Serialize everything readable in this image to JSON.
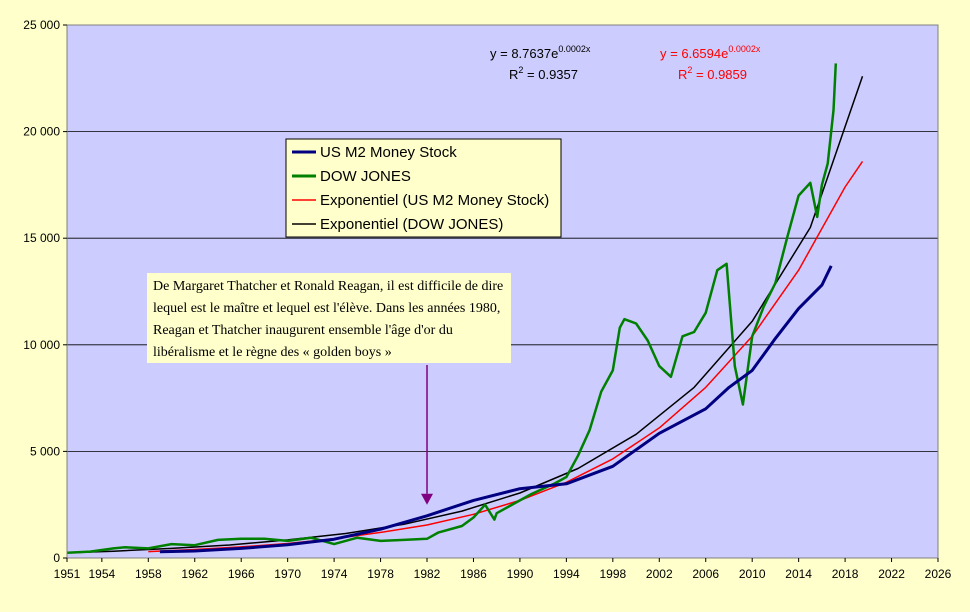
{
  "chart_data": {
    "type": "line",
    "title": "",
    "xlabel": "",
    "ylabel": "",
    "xlim": [
      1951,
      2026
    ],
    "ylim": [
      0,
      25000
    ],
    "x_ticks": [
      "1951",
      "1954",
      "1958",
      "1962",
      "1966",
      "1970",
      "1974",
      "1978",
      "1982",
      "1986",
      "1990",
      "1994",
      "1998",
      "2002",
      "2006",
      "2010",
      "2014",
      "2018",
      "2022",
      "2026"
    ],
    "y_ticks": [
      "0",
      "5 000",
      "10 000",
      "15 000",
      "20 000",
      "25 000"
    ],
    "grid": "horizontal",
    "plot_background": "#ccccff",
    "page_background": "#ffffcc",
    "legend": {
      "placement": "upper-center",
      "entries": [
        {
          "label": "US M2 Money Stock",
          "color": "#000080"
        },
        {
          "label": "DOW JONES",
          "color": "#008000"
        },
        {
          "label": "Exponentiel (US M2 Money Stock)",
          "color": "#ff0000"
        },
        {
          "label": "Exponentiel (DOW JONES)",
          "color": "#000000"
        }
      ]
    },
    "series": [
      {
        "name": "US M2 Money Stock",
        "color": "#000080",
        "x": [
          1959,
          1962,
          1966,
          1970,
          1974,
          1978,
          1982,
          1986,
          1990,
          1994,
          1998,
          2002,
          2006,
          2008,
          2010,
          2012,
          2014,
          2016,
          2016.8
        ],
        "y": [
          290,
          330,
          450,
          620,
          880,
          1350,
          1980,
          2700,
          3250,
          3480,
          4300,
          5850,
          7000,
          8000,
          8800,
          10300,
          11700,
          12800,
          13700
        ]
      },
      {
        "name": "DOW JONES",
        "color": "#008000",
        "x": [
          1951,
          1953,
          1955,
          1956,
          1958,
          1960,
          1962,
          1964,
          1966,
          1968,
          1970,
          1972,
          1974,
          1976,
          1978,
          1980,
          1982,
          1983,
          1985,
          1986,
          1987,
          1987.8,
          1988,
          1990,
          1991,
          1993,
          1994,
          1995,
          1996,
          1997,
          1998,
          1998.6,
          1999,
          2000,
          2001,
          2002,
          2003,
          2004,
          2005,
          2006,
          2007,
          2007.8,
          2008.5,
          2009.2,
          2010,
          2011,
          2012,
          2013,
          2014,
          2015,
          2015.6,
          2016,
          2016.5,
          2017,
          2017.2
        ],
        "y": [
          250,
          300,
          450,
          500,
          450,
          650,
          600,
          850,
          900,
          900,
          800,
          950,
          650,
          950,
          800,
          850,
          900,
          1200,
          1500,
          1900,
          2500,
          1800,
          2100,
          2700,
          3000,
          3500,
          3800,
          4800,
          6000,
          7800,
          8800,
          10800,
          11200,
          11000,
          10200,
          9000,
          8500,
          10400,
          10600,
          11500,
          13500,
          13800,
          9000,
          7200,
          10400,
          11800,
          12900,
          15000,
          17000,
          17600,
          16000,
          17500,
          18500,
          21000,
          23200
        ]
      },
      {
        "name": "Exponentiel (US M2 Money Stock)",
        "color": "#ff0000",
        "fit": "exponential",
        "x": [
          1958,
          1962,
          1966,
          1970,
          1974,
          1978,
          1982,
          1986,
          1990,
          1994,
          1998,
          2002,
          2006,
          2010,
          2014,
          2018,
          2019.5
        ],
        "y": [
          300,
          400,
          520,
          680,
          900,
          1200,
          1550,
          2050,
          2700,
          3550,
          4650,
          6100,
          8000,
          10400,
          13500,
          17400,
          18600
        ]
      },
      {
        "name": "Exponentiel (DOW JONES)",
        "color": "#000000",
        "fit": "exponential",
        "x": [
          1951,
          1955,
          1960,
          1965,
          1970,
          1975,
          1980,
          1985,
          1990,
          1995,
          2000,
          2005,
          2010,
          2015,
          2019.5
        ],
        "y": [
          250,
          320,
          450,
          610,
          850,
          1150,
          1580,
          2200,
          3050,
          4200,
          5800,
          8000,
          11100,
          15500,
          22600
        ]
      }
    ],
    "annotations": {
      "eq1": {
        "base": "y = 8.7637e",
        "exp": "0.0002x",
        "r2_label": "R",
        "r2_sup": "2",
        "r2_value": " = 0.9357",
        "color": "#000000"
      },
      "eq2": {
        "base": "y = 6.6594e",
        "exp": "0.0002x",
        "r2_label": "R",
        "r2_sup": "2",
        "r2_value": " = 0.9859",
        "color": "#ff0000"
      },
      "note": "De Margaret Thatcher et Ronald Reagan, il est difficile de dire lequel est le maître et lequel est l'élève. Dans les années 1980, Reagan et Thatcher inaugurent ensemble l'âge d'or du libéralisme et le règne des « golden boys »",
      "arrow_x": 1982,
      "arrow_y": 2500,
      "arrow_color": "#800080"
    }
  }
}
